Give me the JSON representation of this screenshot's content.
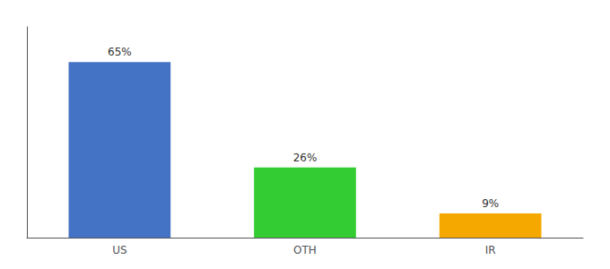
{
  "chart_data": {
    "type": "bar",
    "categories": [
      "US",
      "OTH",
      "IR"
    ],
    "values": [
      65,
      26,
      9
    ],
    "value_labels": [
      "65%",
      "26%",
      "9%"
    ],
    "colors": [
      "#4472c4",
      "#33cc33",
      "#f5a800"
    ],
    "ylim": [
      0,
      78
    ],
    "data_labels": true,
    "tick_labels": "x",
    "grid": false
  }
}
